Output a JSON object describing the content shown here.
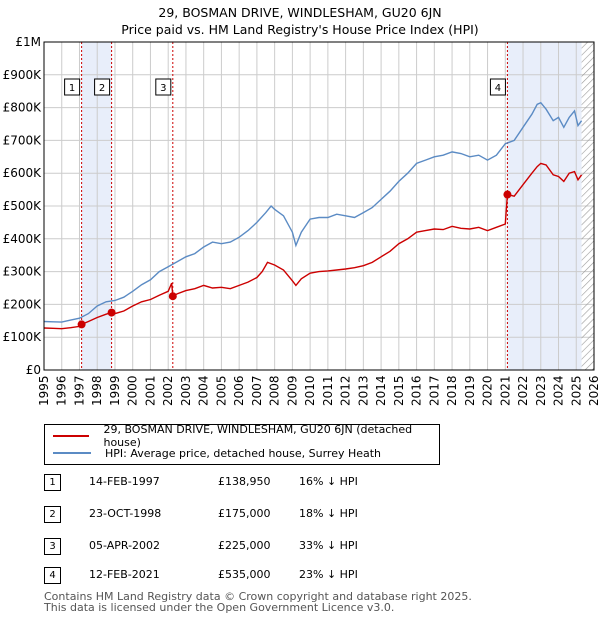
{
  "title": "29, BOSMAN DRIVE, WINDLESHAM, GU20 6JN",
  "subtitle": "Price paid vs. HM Land Registry's House Price Index (HPI)",
  "legend": {
    "red_label": "29, BOSMAN DRIVE, WINDLESHAM, GU20 6JN (detached house)",
    "blue_label": "HPI: Average price, detached house, Surrey Heath"
  },
  "sales": [
    {
      "num": "1",
      "date": "14-FEB-1997",
      "price": "£138,950",
      "hpi": "16% ↓ HPI"
    },
    {
      "num": "2",
      "date": "23-OCT-1998",
      "price": "£175,000",
      "hpi": "18% ↓ HPI"
    },
    {
      "num": "3",
      "date": "05-APR-2002",
      "price": "£225,000",
      "hpi": "33% ↓ HPI"
    },
    {
      "num": "4",
      "date": "12-FEB-2021",
      "price": "£535,000",
      "hpi": "23% ↓ HPI"
    }
  ],
  "footer": {
    "line1": "Contains HM Land Registry data © Crown copyright and database right 2025.",
    "line2": "This data is licensed under the Open Government Licence v3.0."
  },
  "colors": {
    "red": "#cc0000",
    "blue": "#5b8bc4",
    "grid": "#cccccc",
    "shade": "#e8eefa"
  },
  "chart_data": {
    "type": "line",
    "xlim": [
      1995,
      2026
    ],
    "ylim": [
      0,
      1000000
    ],
    "x_ticks": [
      "1995",
      "1996",
      "1997",
      "1998",
      "1999",
      "2000",
      "2001",
      "2002",
      "2003",
      "2004",
      "2005",
      "2006",
      "2007",
      "2008",
      "2009",
      "2010",
      "2011",
      "2012",
      "2013",
      "2014",
      "2015",
      "2016",
      "2017",
      "2018",
      "2019",
      "2020",
      "2021",
      "2022",
      "2023",
      "2024",
      "2025",
      "2026"
    ],
    "y_ticks": [
      {
        "v": 0,
        "label": "£0"
      },
      {
        "v": 100000,
        "label": "£100K"
      },
      {
        "v": 200000,
        "label": "£200K"
      },
      {
        "v": 300000,
        "label": "£300K"
      },
      {
        "v": 400000,
        "label": "£400K"
      },
      {
        "v": 500000,
        "label": "£500K"
      },
      {
        "v": 600000,
        "label": "£600K"
      },
      {
        "v": 700000,
        "label": "£700K"
      },
      {
        "v": 800000,
        "label": "£800K"
      },
      {
        "v": 900000,
        "label": "£900K"
      },
      {
        "v": 1000000,
        "label": "£1M"
      }
    ],
    "shaded_periods": [
      [
        1997.12,
        1998.81
      ],
      [
        2021.12,
        2025.3
      ]
    ],
    "hatch_from": 2025.3,
    "sale_points": [
      {
        "label": "1",
        "x": 1997.12,
        "y": 138950
      },
      {
        "label": "2",
        "x": 1998.81,
        "y": 175000
      },
      {
        "label": "3",
        "x": 2002.26,
        "y": 225000
      },
      {
        "label": "4",
        "x": 2021.12,
        "y": 535000
      }
    ],
    "series": [
      {
        "name": "29, BOSMAN DRIVE, WINDLESHAM, GU20 6JN (detached house)",
        "color": "#cc0000",
        "points": [
          [
            1995.0,
            128000
          ],
          [
            1995.5,
            127000
          ],
          [
            1996.0,
            126000
          ],
          [
            1996.5,
            129000
          ],
          [
            1997.0,
            133000
          ],
          [
            1997.12,
            138950
          ],
          [
            1997.5,
            148000
          ],
          [
            1998.0,
            160000
          ],
          [
            1998.5,
            170000
          ],
          [
            1998.81,
            175000
          ],
          [
            1999.0,
            172000
          ],
          [
            1999.5,
            180000
          ],
          [
            2000.0,
            195000
          ],
          [
            2000.5,
            208000
          ],
          [
            2001.0,
            215000
          ],
          [
            2001.5,
            228000
          ],
          [
            2002.0,
            240000
          ],
          [
            2002.2,
            265000
          ],
          [
            2002.26,
            225000
          ],
          [
            2002.5,
            232000
          ],
          [
            2003.0,
            242000
          ],
          [
            2003.5,
            248000
          ],
          [
            2004.0,
            258000
          ],
          [
            2004.5,
            250000
          ],
          [
            2005.0,
            252000
          ],
          [
            2005.5,
            248000
          ],
          [
            2006.0,
            258000
          ],
          [
            2006.5,
            268000
          ],
          [
            2007.0,
            282000
          ],
          [
            2007.3,
            300000
          ],
          [
            2007.6,
            328000
          ],
          [
            2008.0,
            320000
          ],
          [
            2008.5,
            305000
          ],
          [
            2009.0,
            272000
          ],
          [
            2009.2,
            258000
          ],
          [
            2009.5,
            278000
          ],
          [
            2010.0,
            295000
          ],
          [
            2010.5,
            300000
          ],
          [
            2011.0,
            302000
          ],
          [
            2011.5,
            305000
          ],
          [
            2012.0,
            308000
          ],
          [
            2012.5,
            312000
          ],
          [
            2013.0,
            318000
          ],
          [
            2013.5,
            328000
          ],
          [
            2014.0,
            345000
          ],
          [
            2014.5,
            362000
          ],
          [
            2015.0,
            385000
          ],
          [
            2015.5,
            400000
          ],
          [
            2016.0,
            420000
          ],
          [
            2016.5,
            425000
          ],
          [
            2017.0,
            430000
          ],
          [
            2017.5,
            428000
          ],
          [
            2018.0,
            438000
          ],
          [
            2018.5,
            432000
          ],
          [
            2019.0,
            430000
          ],
          [
            2019.5,
            435000
          ],
          [
            2020.0,
            425000
          ],
          [
            2020.5,
            435000
          ],
          [
            2021.0,
            445000
          ],
          [
            2021.12,
            535000
          ],
          [
            2021.5,
            530000
          ],
          [
            2022.0,
            565000
          ],
          [
            2022.5,
            600000
          ],
          [
            2022.8,
            620000
          ],
          [
            2023.0,
            630000
          ],
          [
            2023.3,
            625000
          ],
          [
            2023.7,
            595000
          ],
          [
            2024.0,
            590000
          ],
          [
            2024.3,
            575000
          ],
          [
            2024.6,
            600000
          ],
          [
            2024.9,
            605000
          ],
          [
            2025.1,
            580000
          ],
          [
            2025.3,
            595000
          ]
        ]
      },
      {
        "name": "HPI: Average price, detached house, Surrey Heath",
        "color": "#5b8bc4",
        "points": [
          [
            1995.0,
            148000
          ],
          [
            1995.5,
            147000
          ],
          [
            1996.0,
            146000
          ],
          [
            1996.5,
            152000
          ],
          [
            1997.0,
            158000
          ],
          [
            1997.5,
            172000
          ],
          [
            1998.0,
            195000
          ],
          [
            1998.5,
            208000
          ],
          [
            1999.0,
            212000
          ],
          [
            1999.5,
            222000
          ],
          [
            2000.0,
            240000
          ],
          [
            2000.5,
            260000
          ],
          [
            2001.0,
            275000
          ],
          [
            2001.5,
            300000
          ],
          [
            2002.0,
            315000
          ],
          [
            2002.5,
            330000
          ],
          [
            2003.0,
            345000
          ],
          [
            2003.5,
            355000
          ],
          [
            2004.0,
            375000
          ],
          [
            2004.5,
            390000
          ],
          [
            2005.0,
            385000
          ],
          [
            2005.5,
            390000
          ],
          [
            2006.0,
            405000
          ],
          [
            2006.5,
            425000
          ],
          [
            2007.0,
            450000
          ],
          [
            2007.5,
            480000
          ],
          [
            2007.8,
            500000
          ],
          [
            2008.0,
            490000
          ],
          [
            2008.5,
            470000
          ],
          [
            2009.0,
            420000
          ],
          [
            2009.2,
            380000
          ],
          [
            2009.5,
            420000
          ],
          [
            2010.0,
            460000
          ],
          [
            2010.5,
            465000
          ],
          [
            2011.0,
            465000
          ],
          [
            2011.5,
            475000
          ],
          [
            2012.0,
            470000
          ],
          [
            2012.5,
            465000
          ],
          [
            2013.0,
            480000
          ],
          [
            2013.5,
            495000
          ],
          [
            2014.0,
            520000
          ],
          [
            2014.5,
            545000
          ],
          [
            2015.0,
            575000
          ],
          [
            2015.5,
            600000
          ],
          [
            2016.0,
            630000
          ],
          [
            2016.5,
            640000
          ],
          [
            2017.0,
            650000
          ],
          [
            2017.5,
            655000
          ],
          [
            2018.0,
            665000
          ],
          [
            2018.5,
            660000
          ],
          [
            2019.0,
            650000
          ],
          [
            2019.5,
            655000
          ],
          [
            2020.0,
            640000
          ],
          [
            2020.5,
            655000
          ],
          [
            2021.0,
            690000
          ],
          [
            2021.5,
            700000
          ],
          [
            2022.0,
            740000
          ],
          [
            2022.5,
            780000
          ],
          [
            2022.8,
            810000
          ],
          [
            2023.0,
            815000
          ],
          [
            2023.3,
            795000
          ],
          [
            2023.7,
            760000
          ],
          [
            2024.0,
            770000
          ],
          [
            2024.3,
            740000
          ],
          [
            2024.6,
            770000
          ],
          [
            2024.9,
            790000
          ],
          [
            2025.1,
            745000
          ],
          [
            2025.3,
            760000
          ]
        ]
      }
    ]
  }
}
